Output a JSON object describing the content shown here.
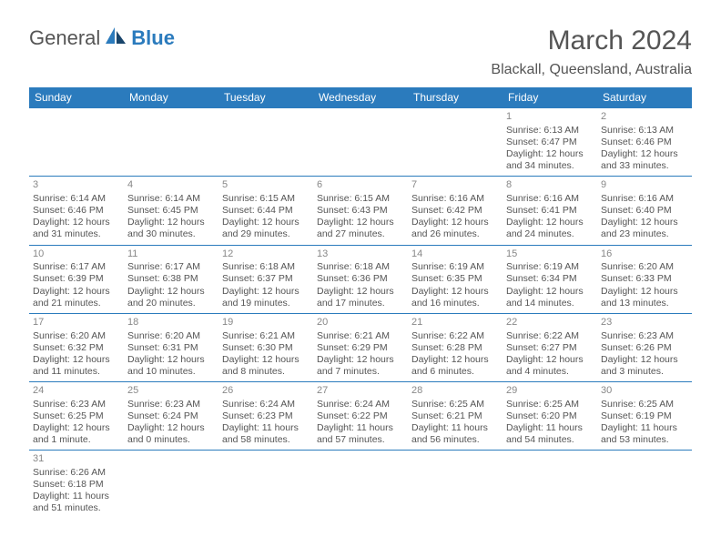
{
  "logo": {
    "part1": "General",
    "part2": "Blue"
  },
  "title": "March 2024",
  "location": "Blackall, Queensland, Australia",
  "colors": {
    "accent": "#2b7bbd",
    "text": "#555555",
    "bg": "#ffffff"
  },
  "dayHeaders": [
    "Sunday",
    "Monday",
    "Tuesday",
    "Wednesday",
    "Thursday",
    "Friday",
    "Saturday"
  ],
  "weeks": [
    [
      null,
      null,
      null,
      null,
      null,
      {
        "n": "1",
        "sunrise": "Sunrise: 6:13 AM",
        "sunset": "Sunset: 6:47 PM",
        "daylight": "Daylight: 12 hours and 34 minutes."
      },
      {
        "n": "2",
        "sunrise": "Sunrise: 6:13 AM",
        "sunset": "Sunset: 6:46 PM",
        "daylight": "Daylight: 12 hours and 33 minutes."
      }
    ],
    [
      {
        "n": "3",
        "sunrise": "Sunrise: 6:14 AM",
        "sunset": "Sunset: 6:46 PM",
        "daylight": "Daylight: 12 hours and 31 minutes."
      },
      {
        "n": "4",
        "sunrise": "Sunrise: 6:14 AM",
        "sunset": "Sunset: 6:45 PM",
        "daylight": "Daylight: 12 hours and 30 minutes."
      },
      {
        "n": "5",
        "sunrise": "Sunrise: 6:15 AM",
        "sunset": "Sunset: 6:44 PM",
        "daylight": "Daylight: 12 hours and 29 minutes."
      },
      {
        "n": "6",
        "sunrise": "Sunrise: 6:15 AM",
        "sunset": "Sunset: 6:43 PM",
        "daylight": "Daylight: 12 hours and 27 minutes."
      },
      {
        "n": "7",
        "sunrise": "Sunrise: 6:16 AM",
        "sunset": "Sunset: 6:42 PM",
        "daylight": "Daylight: 12 hours and 26 minutes."
      },
      {
        "n": "8",
        "sunrise": "Sunrise: 6:16 AM",
        "sunset": "Sunset: 6:41 PM",
        "daylight": "Daylight: 12 hours and 24 minutes."
      },
      {
        "n": "9",
        "sunrise": "Sunrise: 6:16 AM",
        "sunset": "Sunset: 6:40 PM",
        "daylight": "Daylight: 12 hours and 23 minutes."
      }
    ],
    [
      {
        "n": "10",
        "sunrise": "Sunrise: 6:17 AM",
        "sunset": "Sunset: 6:39 PM",
        "daylight": "Daylight: 12 hours and 21 minutes."
      },
      {
        "n": "11",
        "sunrise": "Sunrise: 6:17 AM",
        "sunset": "Sunset: 6:38 PM",
        "daylight": "Daylight: 12 hours and 20 minutes."
      },
      {
        "n": "12",
        "sunrise": "Sunrise: 6:18 AM",
        "sunset": "Sunset: 6:37 PM",
        "daylight": "Daylight: 12 hours and 19 minutes."
      },
      {
        "n": "13",
        "sunrise": "Sunrise: 6:18 AM",
        "sunset": "Sunset: 6:36 PM",
        "daylight": "Daylight: 12 hours and 17 minutes."
      },
      {
        "n": "14",
        "sunrise": "Sunrise: 6:19 AM",
        "sunset": "Sunset: 6:35 PM",
        "daylight": "Daylight: 12 hours and 16 minutes."
      },
      {
        "n": "15",
        "sunrise": "Sunrise: 6:19 AM",
        "sunset": "Sunset: 6:34 PM",
        "daylight": "Daylight: 12 hours and 14 minutes."
      },
      {
        "n": "16",
        "sunrise": "Sunrise: 6:20 AM",
        "sunset": "Sunset: 6:33 PM",
        "daylight": "Daylight: 12 hours and 13 minutes."
      }
    ],
    [
      {
        "n": "17",
        "sunrise": "Sunrise: 6:20 AM",
        "sunset": "Sunset: 6:32 PM",
        "daylight": "Daylight: 12 hours and 11 minutes."
      },
      {
        "n": "18",
        "sunrise": "Sunrise: 6:20 AM",
        "sunset": "Sunset: 6:31 PM",
        "daylight": "Daylight: 12 hours and 10 minutes."
      },
      {
        "n": "19",
        "sunrise": "Sunrise: 6:21 AM",
        "sunset": "Sunset: 6:30 PM",
        "daylight": "Daylight: 12 hours and 8 minutes."
      },
      {
        "n": "20",
        "sunrise": "Sunrise: 6:21 AM",
        "sunset": "Sunset: 6:29 PM",
        "daylight": "Daylight: 12 hours and 7 minutes."
      },
      {
        "n": "21",
        "sunrise": "Sunrise: 6:22 AM",
        "sunset": "Sunset: 6:28 PM",
        "daylight": "Daylight: 12 hours and 6 minutes."
      },
      {
        "n": "22",
        "sunrise": "Sunrise: 6:22 AM",
        "sunset": "Sunset: 6:27 PM",
        "daylight": "Daylight: 12 hours and 4 minutes."
      },
      {
        "n": "23",
        "sunrise": "Sunrise: 6:23 AM",
        "sunset": "Sunset: 6:26 PM",
        "daylight": "Daylight: 12 hours and 3 minutes."
      }
    ],
    [
      {
        "n": "24",
        "sunrise": "Sunrise: 6:23 AM",
        "sunset": "Sunset: 6:25 PM",
        "daylight": "Daylight: 12 hours and 1 minute."
      },
      {
        "n": "25",
        "sunrise": "Sunrise: 6:23 AM",
        "sunset": "Sunset: 6:24 PM",
        "daylight": "Daylight: 12 hours and 0 minutes."
      },
      {
        "n": "26",
        "sunrise": "Sunrise: 6:24 AM",
        "sunset": "Sunset: 6:23 PM",
        "daylight": "Daylight: 11 hours and 58 minutes."
      },
      {
        "n": "27",
        "sunrise": "Sunrise: 6:24 AM",
        "sunset": "Sunset: 6:22 PM",
        "daylight": "Daylight: 11 hours and 57 minutes."
      },
      {
        "n": "28",
        "sunrise": "Sunrise: 6:25 AM",
        "sunset": "Sunset: 6:21 PM",
        "daylight": "Daylight: 11 hours and 56 minutes."
      },
      {
        "n": "29",
        "sunrise": "Sunrise: 6:25 AM",
        "sunset": "Sunset: 6:20 PM",
        "daylight": "Daylight: 11 hours and 54 minutes."
      },
      {
        "n": "30",
        "sunrise": "Sunrise: 6:25 AM",
        "sunset": "Sunset: 6:19 PM",
        "daylight": "Daylight: 11 hours and 53 minutes."
      }
    ],
    [
      {
        "n": "31",
        "sunrise": "Sunrise: 6:26 AM",
        "sunset": "Sunset: 6:18 PM",
        "daylight": "Daylight: 11 hours and 51 minutes."
      },
      null,
      null,
      null,
      null,
      null,
      null
    ]
  ]
}
